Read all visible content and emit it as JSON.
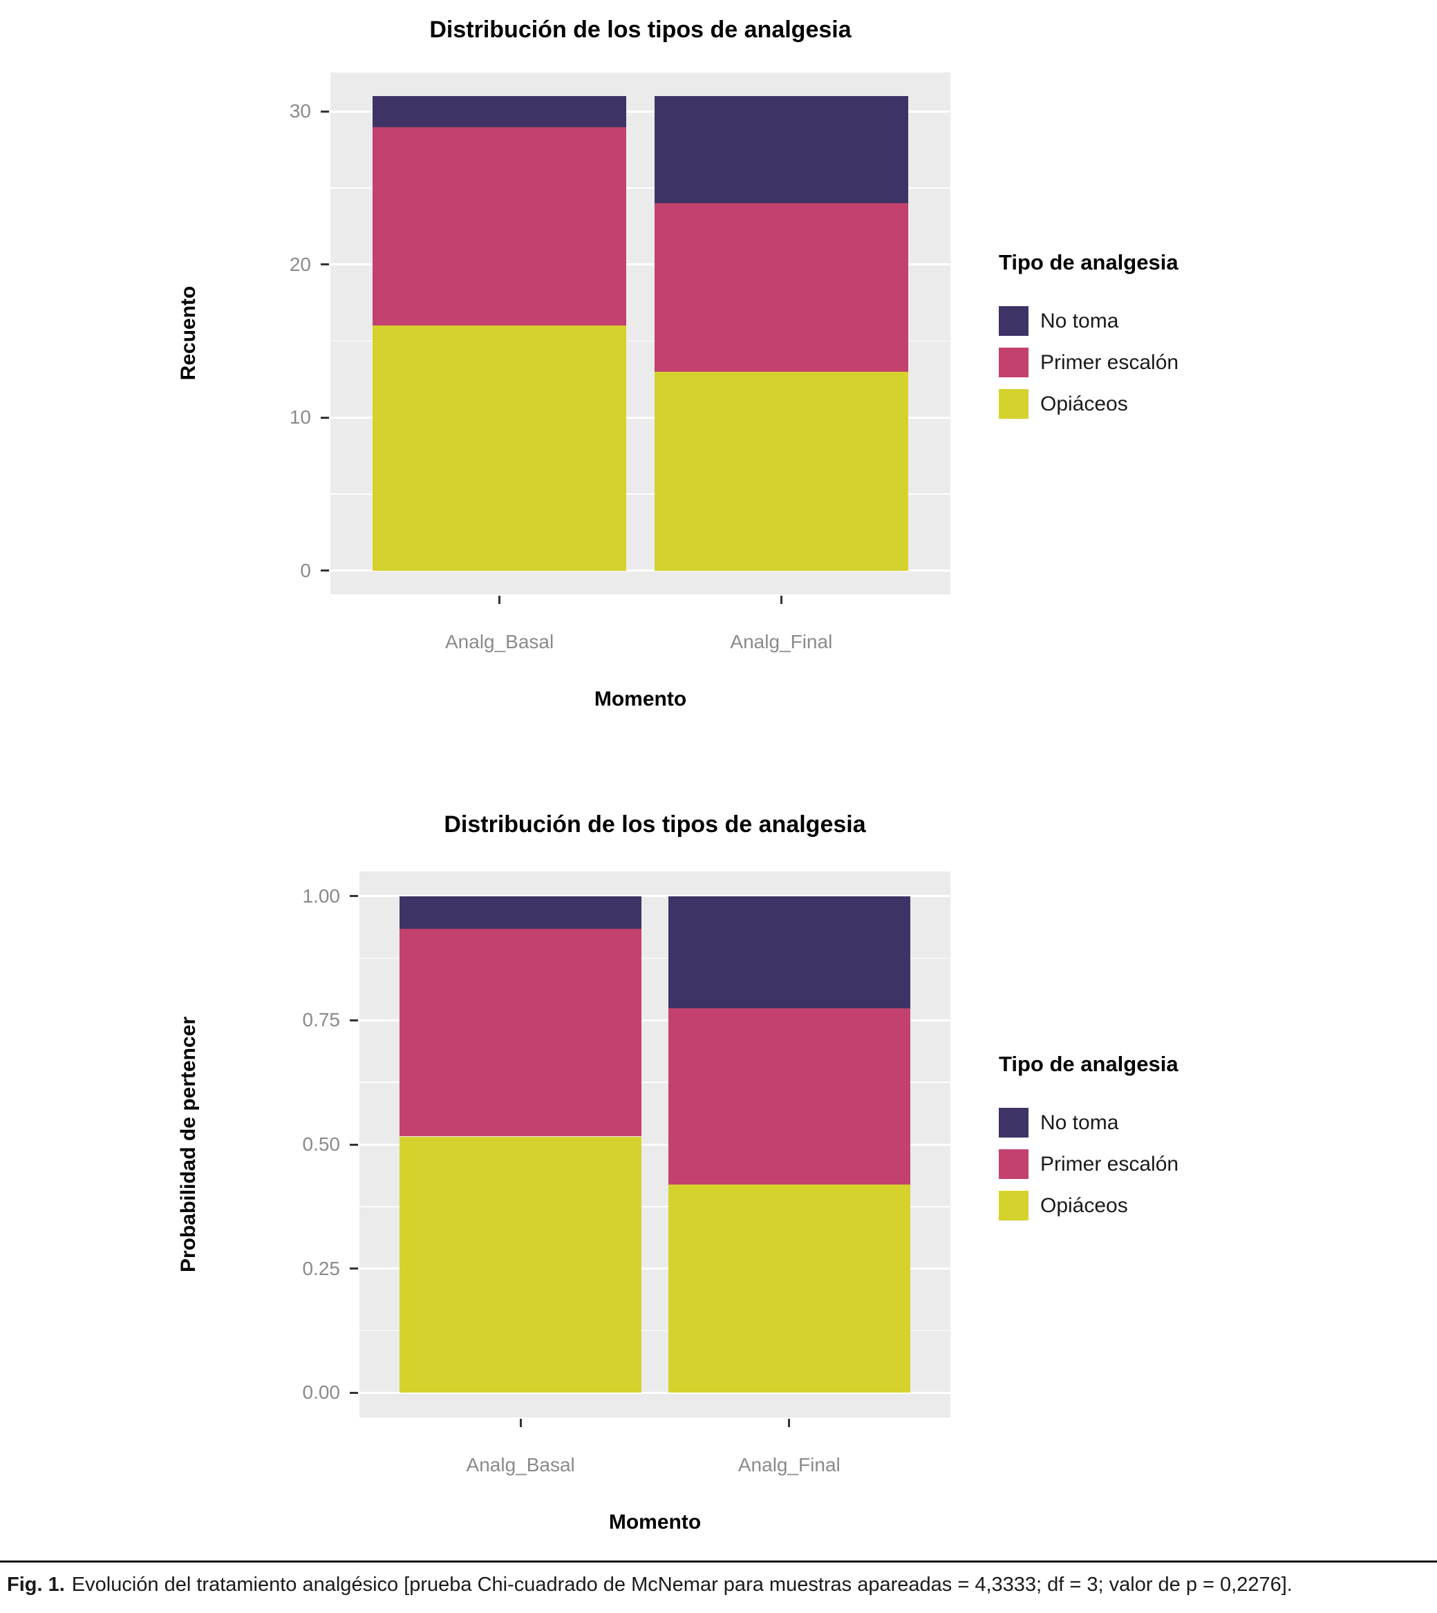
{
  "colors": {
    "no_toma": "#3F3366",
    "primer_escalon": "#C2416F",
    "opiaceos": "#D6D22D",
    "panel_bg": "#EBEBEB",
    "grid": "#FFFFFF",
    "axis_text": "#8A8A8A",
    "tick_mark": "#333333",
    "title_text": "#000000"
  },
  "chart_data": [
    {
      "type": "bar",
      "stacked": true,
      "title": "Distribución de los tipos de analgesia",
      "xlabel": "Momento",
      "ylabel": "Recuento",
      "categories": [
        "Analg_Basal",
        "Analg_Final"
      ],
      "series": [
        {
          "name": "No toma",
          "color": "#3F3366",
          "values": [
            2,
            7
          ]
        },
        {
          "name": "Primer escalón",
          "color": "#C2416F",
          "values": [
            13,
            11
          ]
        },
        {
          "name": "Opiáceos",
          "color": "#D6D22D",
          "values": [
            16,
            13
          ]
        }
      ],
      "yticks": [
        "0",
        "10",
        "20",
        "30"
      ],
      "ylim": [
        0,
        31
      ],
      "legend_title": "Tipo de analgesia",
      "legend_position": "right",
      "grid": true
    },
    {
      "type": "bar",
      "stacked": true,
      "title": "Distribución de los tipos de analgesia",
      "xlabel": "Momento",
      "ylabel": "Probabilidad de pertencer",
      "categories": [
        "Analg_Basal",
        "Analg_Final"
      ],
      "series": [
        {
          "name": "No toma",
          "color": "#3F3366",
          "values": [
            0.065,
            0.226
          ]
        },
        {
          "name": "Primer escalón",
          "color": "#C2416F",
          "values": [
            0.419,
            0.355
          ]
        },
        {
          "name": "Opiáceos",
          "color": "#D6D22D",
          "values": [
            0.516,
            0.419
          ]
        }
      ],
      "yticks": [
        "0.00",
        "0.25",
        "0.50",
        "0.75",
        "1.00"
      ],
      "ylim": [
        0,
        1
      ],
      "legend_title": "Tipo de analgesia",
      "legend_position": "right",
      "grid": true
    }
  ],
  "caption": {
    "prefix": "Fig. 1.",
    "text": "Evolución del tratamiento analgésico [prueba Chi-cuadrado de McNemar para muestras apareadas = 4,3333; df = 3; valor de p = 0,2276]."
  }
}
